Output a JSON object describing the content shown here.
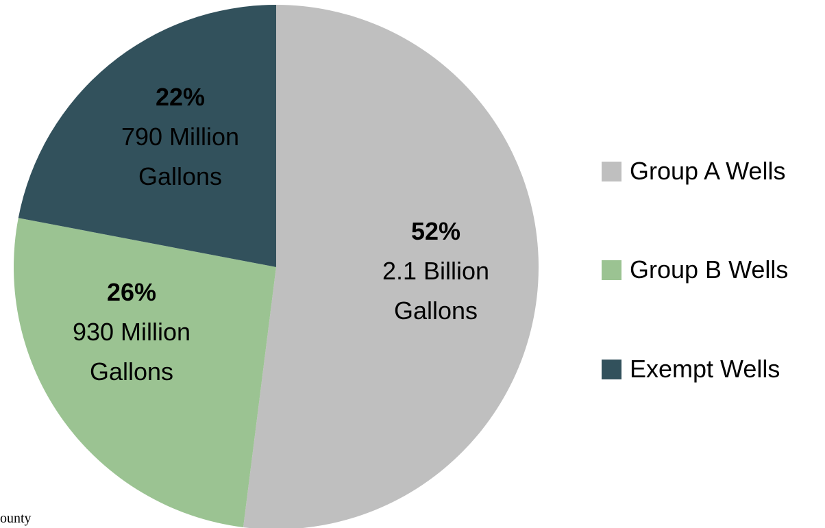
{
  "chart_data": {
    "type": "pie",
    "title": "",
    "start_angle_deg": 0,
    "direction": "clockwise",
    "slices": [
      {
        "label": "Group A Wells",
        "value": 52,
        "pct_label": "52%",
        "line1": "2.1 Billion",
        "line2": "Gallons",
        "color": "#BFBFBF"
      },
      {
        "label": "Group B Wells",
        "value": 26,
        "pct_label": "26%",
        "line1": "930 Million",
        "line2": "Gallons",
        "color": "#9BC392"
      },
      {
        "label": "Exempt Wells",
        "value": 22,
        "pct_label": "22%",
        "line1": "790 Million",
        "line2": "Gallons",
        "color": "#32515C"
      }
    ],
    "legend_position": "right"
  },
  "footnote_fragment": "ounty"
}
